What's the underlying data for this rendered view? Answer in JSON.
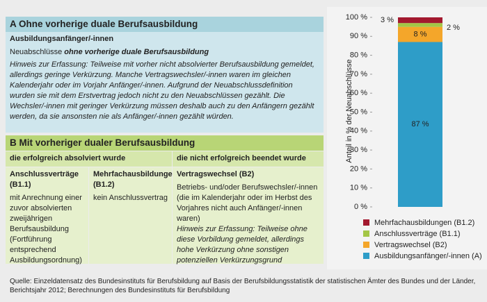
{
  "section_a": {
    "title": "A Ohne vorherige duale Berufsausbildung",
    "subtitle": "Ausbildungsanfänger/-innen",
    "line": {
      "plain": "Neuabschlüsse",
      "italic": "ohne vorherige duale Berufsausbildung"
    },
    "note": "Hinweis zur Erfassung: Teilweise mit vorher nicht absolvierter Berufsausbildung gemeldet, allerdings geringe Verkürzung. Manche Vertragswechsler/-innen waren im gleichen Kalenderjahr oder im Vorjahr Anfänger/-innen. Aufgrund der Neuabschlussdefinition wurden sie mit dem Erstvertrag jedoch nicht zu den Neuabschlüssen gezählt. Die Wechsler/-innen mit geringer Verkürzung müssen deshalb auch zu den Anfängern gezählt werden, da sie ansonsten nie als Anfänger/-innen gezählt würden."
  },
  "section_b": {
    "title": "B Mit vorheriger dualer Berufsausbildung",
    "column_headers": [
      "die erfolgreich absolviert wurde",
      "die nicht erfolgreich beendet wurde"
    ],
    "columns": [
      {
        "title": "Anschlussverträge (B1.1)",
        "text": "mit Anrechnung einer zuvor absolvierten zweijährigen Berufsausbildung (Fortführung entsprechend Ausbildungsordnung)"
      },
      {
        "title": "Mehrfachausbildungen (B1.2)",
        "text": "kein Anschlussvertrag"
      },
      {
        "title": "Vertragswechsel (B2)",
        "text": "Betriebs- und/oder Berufswechsler/-innen (die im Kalenderjahr oder im Herbst des Vorjahres nicht auch Anfänger/-innen waren)",
        "note": "Hinweis zur Erfassung: Teilweise ohne diese Vorbildung gemeldet, allerdings hohe Verkürzung ohne sonstigen potenziellen Verkürzungsgrund"
      }
    ]
  },
  "source": "Quelle: Einzeldatensatz des Bundesinstituts für Berufsbildung auf Basis der Berufsbildungsstatistik der statistischen Ämter des Bundes und der Länder, Berichtsjahr 2012; Berechnungen des Bundesinstituts für Berufsbildung",
  "chart_data": {
    "type": "stacked_bar",
    "y_label": "Anteil in % der Neuabschlüsse",
    "categories": [
      null
    ],
    "series": [
      {
        "name": "Ausbildungsanfänger/-innen (A)",
        "color": "#2e9dc8",
        "values": [
          87
        ],
        "value_labels": [
          "87 %"
        ]
      },
      {
        "name": "Vertragswechsel (B2)",
        "color": "#f4a62a",
        "values": [
          8
        ],
        "value_labels": [
          "8 %"
        ]
      },
      {
        "name": "Anschlussverträge (B1.1)",
        "color": "#a3c646",
        "values": [
          2
        ],
        "value_labels": [
          "2 %"
        ]
      },
      {
        "name": "Mehrfachausbildungen (B1.2)",
        "color": "#a3192f",
        "values": [
          3
        ],
        "value_labels": [
          "3 %"
        ]
      }
    ],
    "ylim": [
      0,
      100
    ],
    "yticks": [
      {
        "value": 0,
        "label": "0 %"
      },
      {
        "value": 10,
        "label": "10 %"
      },
      {
        "value": 20,
        "label": "20 %"
      },
      {
        "value": 30,
        "label": "30 %"
      },
      {
        "value": 40,
        "label": "40 %"
      },
      {
        "value": 50,
        "label": "50 %"
      },
      {
        "value": 60,
        "label": "60 %"
      },
      {
        "value": 70,
        "label": "70 %"
      },
      {
        "value": 80,
        "label": "80 %"
      },
      {
        "value": 90,
        "label": "90 %"
      },
      {
        "value": 100,
        "label": "100 %"
      }
    ]
  }
}
